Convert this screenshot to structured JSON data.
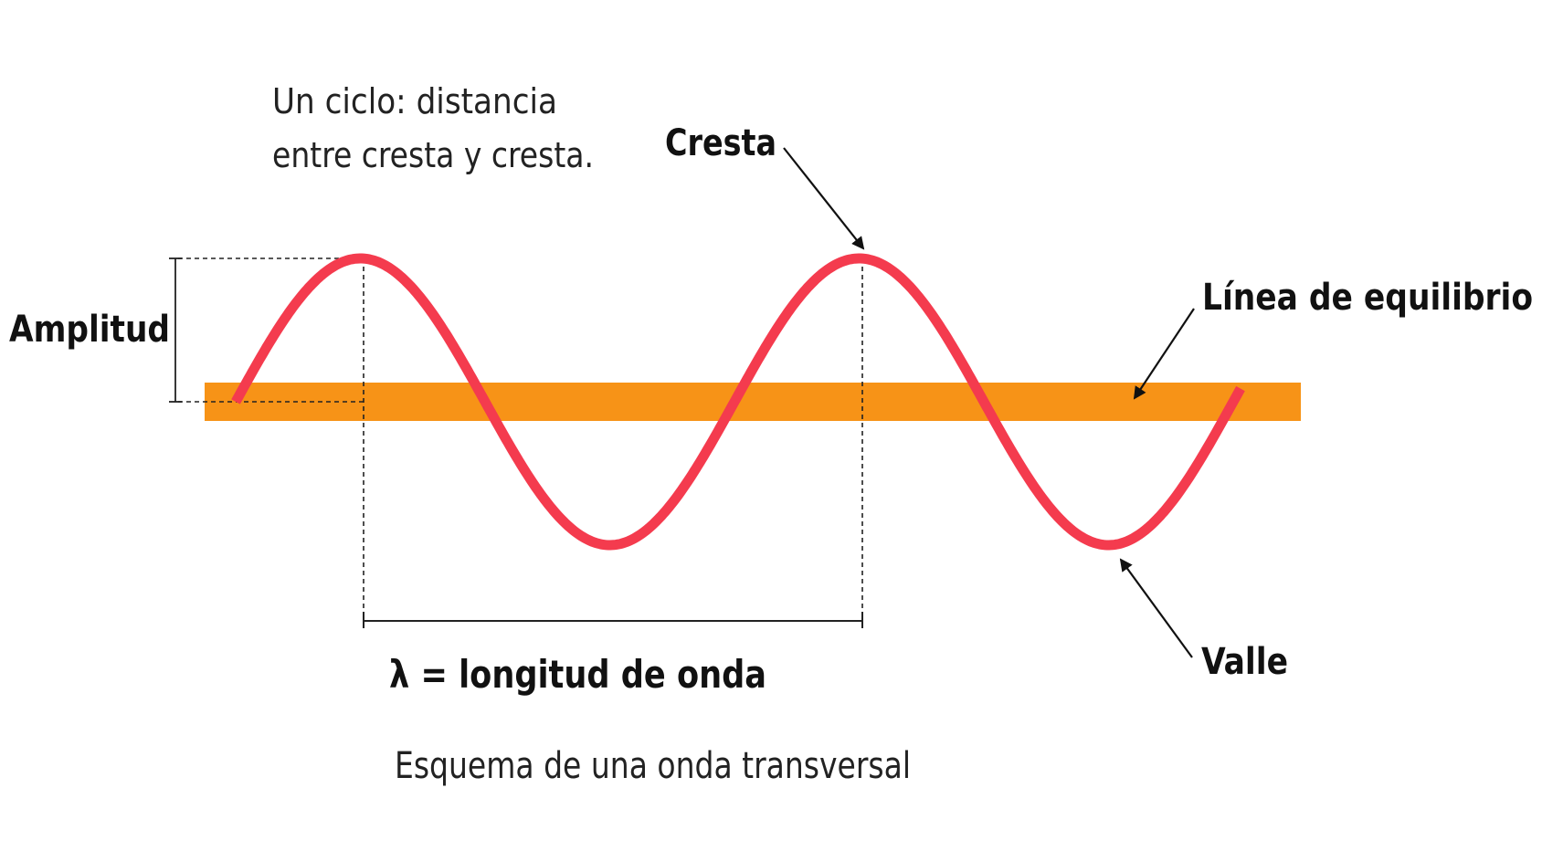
{
  "labels": {
    "cycle_line1": "Un ciclo: distancia",
    "cycle_line2": "entre cresta y cresta.",
    "crest": "Cresta",
    "equilibrium": "Línea de equilibrio",
    "amplitude": "Amplitud",
    "wavelength": "λ = longitud de onda",
    "trough": "Valle",
    "caption": "Esquema de una onda transversal"
  },
  "colors": {
    "wave": "#f43b4e",
    "equilibrium_bar": "#f79317",
    "guide_lines": "#222222",
    "arrows": "#111111"
  }
}
